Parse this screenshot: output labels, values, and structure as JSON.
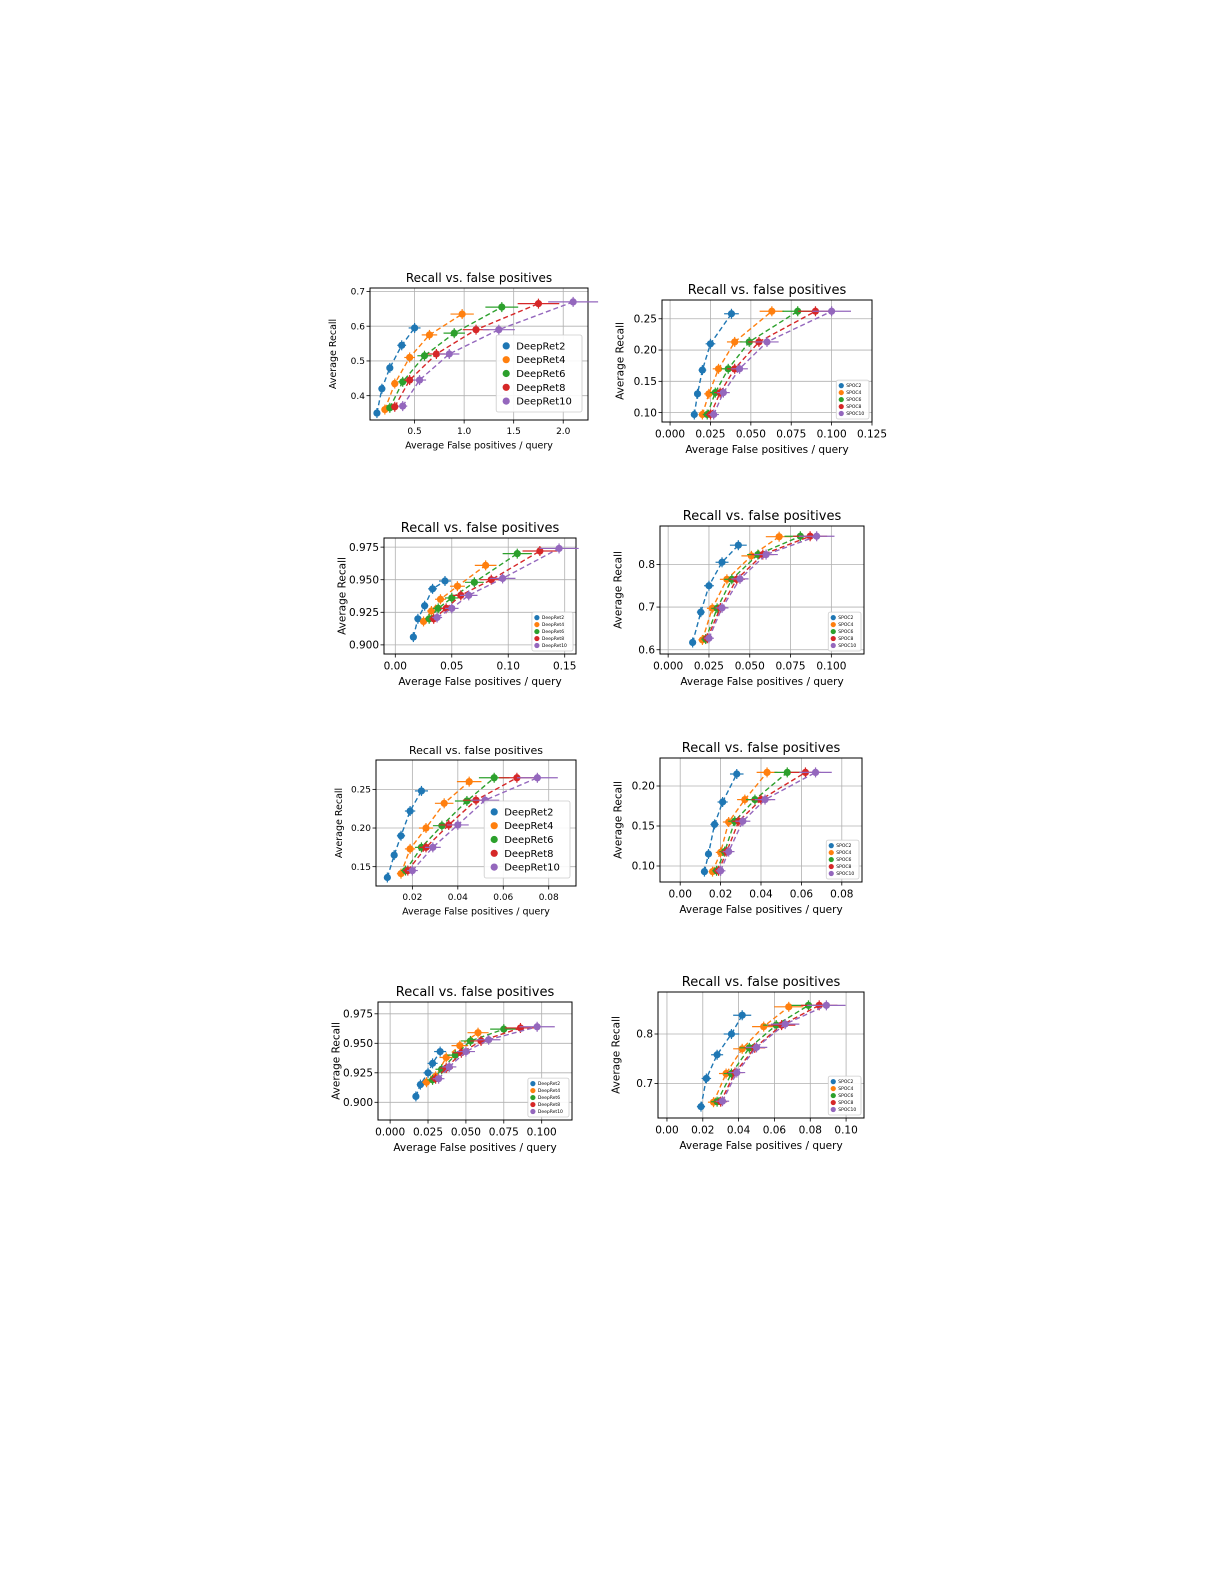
{
  "colors": {
    "blue": "#1f77b4",
    "orange": "#ff7f0e",
    "green": "#2ca02c",
    "red": "#d62728",
    "purple": "#9467bd"
  },
  "chart_data": [
    {
      "type": "scatter",
      "title": "Recall vs. false positives",
      "xlabel": "Average False positives / query",
      "ylabel": "Average Recall",
      "xlim": [
        0.05,
        2.25
      ],
      "ylim": [
        0.33,
        0.71
      ],
      "xticks": [
        0.5,
        1.0,
        1.5,
        2.0
      ],
      "xtick_labels": [
        "0.5",
        "1.0",
        "1.5",
        "2.0"
      ],
      "yticks": [
        0.4,
        0.5,
        0.6,
        0.7
      ],
      "ytick_labels": [
        "0.4",
        "0.5",
        "0.6",
        "0.7"
      ],
      "grid": true,
      "legend": "center-right",
      "series": [
        {
          "name": "DeepRet2",
          "x": [
            0.12,
            0.17,
            0.25,
            0.37,
            0.5
          ],
          "y": [
            0.35,
            0.42,
            0.48,
            0.545,
            0.595
          ]
        },
        {
          "name": "DeepRet4",
          "x": [
            0.2,
            0.3,
            0.45,
            0.65,
            0.98
          ],
          "y": [
            0.36,
            0.435,
            0.51,
            0.575,
            0.635
          ]
        },
        {
          "name": "DeepRet6",
          "x": [
            0.25,
            0.38,
            0.6,
            0.9,
            1.38
          ],
          "y": [
            0.365,
            0.44,
            0.515,
            0.58,
            0.655
          ]
        },
        {
          "name": "DeepRet8",
          "x": [
            0.3,
            0.45,
            0.72,
            1.12,
            1.75
          ],
          "y": [
            0.368,
            0.445,
            0.52,
            0.59,
            0.665
          ]
        },
        {
          "name": "DeepRet10",
          "x": [
            0.38,
            0.55,
            0.85,
            1.35,
            2.1
          ],
          "y": [
            0.37,
            0.445,
            0.52,
            0.59,
            0.67
          ]
        }
      ]
    },
    {
      "type": "scatter",
      "title": "Recall vs. false positives",
      "xlabel": "Average False positives / query",
      "ylabel": "Average Recall",
      "xlim": [
        -0.005,
        0.125
      ],
      "ylim": [
        0.085,
        0.28
      ],
      "xticks": [
        0.0,
        0.025,
        0.05,
        0.075,
        0.1,
        0.125
      ],
      "xtick_labels": [
        "0.000",
        "0.025",
        "0.050",
        "0.075",
        "0.100",
        "0.125"
      ],
      "yticks": [
        0.1,
        0.15,
        0.2,
        0.25
      ],
      "ytick_labels": [
        "0.10",
        "0.15",
        "0.20",
        "0.25"
      ],
      "grid": true,
      "legend": "bottom-right",
      "series": [
        {
          "name": "SPOC2",
          "x": [
            0.015,
            0.017,
            0.02,
            0.025,
            0.038
          ],
          "y": [
            0.097,
            0.13,
            0.168,
            0.21,
            0.258
          ]
        },
        {
          "name": "SPOC4",
          "x": [
            0.02,
            0.024,
            0.03,
            0.04,
            0.063
          ],
          "y": [
            0.097,
            0.13,
            0.17,
            0.213,
            0.262
          ]
        },
        {
          "name": "SPOC6",
          "x": [
            0.023,
            0.028,
            0.036,
            0.049,
            0.079
          ],
          "y": [
            0.097,
            0.132,
            0.17,
            0.213,
            0.262
          ]
        },
        {
          "name": "SPOC8",
          "x": [
            0.025,
            0.031,
            0.04,
            0.055,
            0.09
          ],
          "y": [
            0.097,
            0.132,
            0.17,
            0.213,
            0.262
          ]
        },
        {
          "name": "SPOC10",
          "x": [
            0.027,
            0.033,
            0.043,
            0.06,
            0.1
          ],
          "y": [
            0.097,
            0.132,
            0.17,
            0.213,
            0.262
          ]
        }
      ]
    },
    {
      "type": "scatter",
      "title": "Recall vs. false positives",
      "xlabel": "Average False positives / query",
      "ylabel": "Average Recall",
      "xlim": [
        -0.01,
        0.16
      ],
      "ylim": [
        0.893,
        0.982
      ],
      "xticks": [
        0.0,
        0.05,
        0.1,
        0.15
      ],
      "xtick_labels": [
        "0.00",
        "0.05",
        "0.10",
        "0.15"
      ],
      "yticks": [
        0.9,
        0.925,
        0.95,
        0.975
      ],
      "ytick_labels": [
        "0.900",
        "0.925",
        "0.950",
        "0.975"
      ],
      "grid": true,
      "legend": "bottom-right",
      "series": [
        {
          "name": "DeepRet2",
          "x": [
            0.016,
            0.02,
            0.026,
            0.033,
            0.044
          ],
          "y": [
            0.906,
            0.92,
            0.93,
            0.943,
            0.949
          ]
        },
        {
          "name": "DeepRet4",
          "x": [
            0.025,
            0.032,
            0.04,
            0.055,
            0.08
          ],
          "y": [
            0.918,
            0.926,
            0.935,
            0.945,
            0.961
          ]
        },
        {
          "name": "DeepRet6",
          "x": [
            0.03,
            0.038,
            0.05,
            0.07,
            0.108
          ],
          "y": [
            0.92,
            0.928,
            0.936,
            0.948,
            0.97
          ]
        },
        {
          "name": "DeepRet8",
          "x": [
            0.034,
            0.045,
            0.058,
            0.085,
            0.128
          ],
          "y": [
            0.92,
            0.928,
            0.938,
            0.95,
            0.972
          ]
        },
        {
          "name": "DeepRet10",
          "x": [
            0.037,
            0.05,
            0.065,
            0.095,
            0.145
          ],
          "y": [
            0.921,
            0.928,
            0.938,
            0.951,
            0.974
          ]
        }
      ]
    },
    {
      "type": "scatter",
      "title": "Recall vs. false positives",
      "xlabel": "Average False positives / query",
      "ylabel": "Average Recall",
      "xlim": [
        -0.005,
        0.12
      ],
      "ylim": [
        0.59,
        0.89
      ],
      "xticks": [
        0.0,
        0.025,
        0.05,
        0.075,
        0.1
      ],
      "xtick_labels": [
        "0.000",
        "0.025",
        "0.050",
        "0.075",
        "0.100"
      ],
      "yticks": [
        0.6,
        0.7,
        0.8
      ],
      "ytick_labels": [
        "0.6",
        "0.7",
        "0.8"
      ],
      "grid": true,
      "legend": "bottom-right",
      "series": [
        {
          "name": "SPOC2",
          "x": [
            0.015,
            0.02,
            0.025,
            0.033,
            0.043
          ],
          "y": [
            0.617,
            0.688,
            0.75,
            0.805,
            0.845
          ]
        },
        {
          "name": "SPOC4",
          "x": [
            0.021,
            0.027,
            0.036,
            0.051,
            0.068
          ],
          "y": [
            0.623,
            0.697,
            0.765,
            0.82,
            0.865
          ]
        },
        {
          "name": "SPOC6",
          "x": [
            0.023,
            0.03,
            0.039,
            0.055,
            0.081
          ],
          "y": [
            0.625,
            0.697,
            0.765,
            0.823,
            0.866
          ]
        },
        {
          "name": "SPOC8",
          "x": [
            0.024,
            0.032,
            0.042,
            0.058,
            0.087
          ],
          "y": [
            0.627,
            0.698,
            0.765,
            0.823,
            0.866
          ]
        },
        {
          "name": "SPOC10",
          "x": [
            0.025,
            0.033,
            0.044,
            0.06,
            0.091
          ],
          "y": [
            0.627,
            0.698,
            0.766,
            0.823,
            0.866
          ]
        }
      ]
    },
    {
      "type": "scatter",
      "title": "Recall vs. false positives",
      "xlabel": "Average False positives / query",
      "ylabel": "Average Recall",
      "xlim": [
        0.004,
        0.092
      ],
      "ylim": [
        0.125,
        0.288
      ],
      "xticks": [
        0.02,
        0.04,
        0.06,
        0.08
      ],
      "xtick_labels": [
        "0.02",
        "0.04",
        "0.06",
        "0.08"
      ],
      "yticks": [
        0.15,
        0.2,
        0.25
      ],
      "ytick_labels": [
        "0.15",
        "0.20",
        "0.25"
      ],
      "grid": true,
      "legend": "center-right",
      "series": [
        {
          "name": "DeepRet2",
          "x": [
            0.009,
            0.012,
            0.015,
            0.019,
            0.024
          ],
          "y": [
            0.136,
            0.165,
            0.19,
            0.222,
            0.248
          ]
        },
        {
          "name": "DeepRet4",
          "x": [
            0.015,
            0.019,
            0.026,
            0.034,
            0.045
          ],
          "y": [
            0.141,
            0.173,
            0.2,
            0.232,
            0.26
          ]
        },
        {
          "name": "DeepRet6",
          "x": [
            0.017,
            0.024,
            0.033,
            0.044,
            0.056
          ],
          "y": [
            0.145,
            0.175,
            0.203,
            0.235,
            0.265
          ]
        },
        {
          "name": "DeepRet8",
          "x": [
            0.018,
            0.026,
            0.036,
            0.048,
            0.066
          ],
          "y": [
            0.145,
            0.175,
            0.204,
            0.236,
            0.265
          ]
        },
        {
          "name": "DeepRet10",
          "x": [
            0.02,
            0.029,
            0.04,
            0.052,
            0.075
          ],
          "y": [
            0.145,
            0.175,
            0.204,
            0.236,
            0.265
          ]
        }
      ]
    },
    {
      "type": "scatter",
      "title": "Recall vs. false positives",
      "xlabel": "Average False positives / query",
      "ylabel": "Average Recall",
      "xlim": [
        -0.01,
        0.09
      ],
      "ylim": [
        0.08,
        0.235
      ],
      "xticks": [
        0.0,
        0.02,
        0.04,
        0.06,
        0.08
      ],
      "xtick_labels": [
        "0.00",
        "0.02",
        "0.04",
        "0.06",
        "0.08"
      ],
      "yticks": [
        0.1,
        0.15,
        0.2
      ],
      "ytick_labels": [
        "0.10",
        "0.15",
        "0.20"
      ],
      "grid": true,
      "legend": "bottom-right",
      "series": [
        {
          "name": "SPOC2",
          "x": [
            0.012,
            0.014,
            0.017,
            0.021,
            0.028
          ],
          "y": [
            0.093,
            0.115,
            0.152,
            0.18,
            0.215
          ]
        },
        {
          "name": "SPOC4",
          "x": [
            0.016,
            0.02,
            0.024,
            0.032,
            0.043
          ],
          "y": [
            0.093,
            0.117,
            0.155,
            0.183,
            0.217
          ]
        },
        {
          "name": "SPOC6",
          "x": [
            0.018,
            0.022,
            0.027,
            0.037,
            0.053
          ],
          "y": [
            0.094,
            0.118,
            0.156,
            0.183,
            0.217
          ]
        },
        {
          "name": "SPOC8",
          "x": [
            0.019,
            0.023,
            0.029,
            0.04,
            0.062
          ],
          "y": [
            0.094,
            0.118,
            0.156,
            0.183,
            0.217
          ]
        },
        {
          "name": "SPOC10",
          "x": [
            0.02,
            0.024,
            0.031,
            0.042,
            0.067
          ],
          "y": [
            0.094,
            0.118,
            0.156,
            0.183,
            0.217
          ]
        }
      ]
    },
    {
      "type": "scatter",
      "title": "Recall vs. false positives",
      "xlabel": "Average False positives / query",
      "ylabel": "Average Recall",
      "xlim": [
        -0.008,
        0.12
      ],
      "ylim": [
        0.885,
        0.985
      ],
      "xticks": [
        0.0,
        0.025,
        0.05,
        0.075,
        0.1
      ],
      "xtick_labels": [
        "0.000",
        "0.025",
        "0.050",
        "0.075",
        "0.100"
      ],
      "yticks": [
        0.9,
        0.925,
        0.95,
        0.975
      ],
      "ytick_labels": [
        "0.900",
        "0.925",
        "0.950",
        "0.975"
      ],
      "grid": true,
      "legend": "bottom-right",
      "series": [
        {
          "name": "DeepRet2",
          "x": [
            0.017,
            0.02,
            0.025,
            0.028,
            0.033
          ],
          "y": [
            0.905,
            0.915,
            0.925,
            0.933,
            0.943
          ]
        },
        {
          "name": "DeepRet4",
          "x": [
            0.024,
            0.03,
            0.037,
            0.046,
            0.058
          ],
          "y": [
            0.917,
            0.922,
            0.938,
            0.948,
            0.959
          ]
        },
        {
          "name": "DeepRet6",
          "x": [
            0.028,
            0.034,
            0.043,
            0.053,
            0.075
          ],
          "y": [
            0.919,
            0.928,
            0.94,
            0.952,
            0.962
          ]
        },
        {
          "name": "DeepRet8",
          "x": [
            0.03,
            0.037,
            0.047,
            0.06,
            0.086
          ],
          "y": [
            0.92,
            0.929,
            0.942,
            0.952,
            0.963
          ]
        },
        {
          "name": "DeepRet10",
          "x": [
            0.032,
            0.039,
            0.05,
            0.065,
            0.097
          ],
          "y": [
            0.92,
            0.93,
            0.943,
            0.953,
            0.964
          ]
        }
      ]
    },
    {
      "type": "scatter",
      "title": "Recall vs. false positives",
      "xlabel": "Average False positives / query",
      "ylabel": "Average Recall",
      "xlim": [
        -0.005,
        0.11
      ],
      "ylim": [
        0.63,
        0.885
      ],
      "xticks": [
        0.0,
        0.02,
        0.04,
        0.06,
        0.08,
        0.1
      ],
      "xtick_labels": [
        "0.00",
        "0.02",
        "0.04",
        "0.06",
        "0.08",
        "0.10"
      ],
      "yticks": [
        0.7,
        0.8
      ],
      "ytick_labels": [
        "0.7",
        "0.8"
      ],
      "grid": true,
      "legend": "bottom-right",
      "series": [
        {
          "name": "SPOC2",
          "x": [
            0.019,
            0.022,
            0.028,
            0.036,
            0.042
          ],
          "y": [
            0.653,
            0.71,
            0.758,
            0.8,
            0.838
          ]
        },
        {
          "name": "SPOC4",
          "x": [
            0.026,
            0.033,
            0.042,
            0.054,
            0.068
          ],
          "y": [
            0.662,
            0.72,
            0.77,
            0.815,
            0.855
          ]
        },
        {
          "name": "SPOC6",
          "x": [
            0.028,
            0.036,
            0.046,
            0.061,
            0.079
          ],
          "y": [
            0.663,
            0.72,
            0.772,
            0.818,
            0.858
          ]
        },
        {
          "name": "SPOC8",
          "x": [
            0.03,
            0.038,
            0.049,
            0.064,
            0.085
          ],
          "y": [
            0.663,
            0.722,
            0.772,
            0.818,
            0.858
          ]
        },
        {
          "name": "SPOC10",
          "x": [
            0.031,
            0.039,
            0.05,
            0.066,
            0.089
          ],
          "y": [
            0.664,
            0.722,
            0.773,
            0.82,
            0.858
          ]
        }
      ]
    }
  ]
}
